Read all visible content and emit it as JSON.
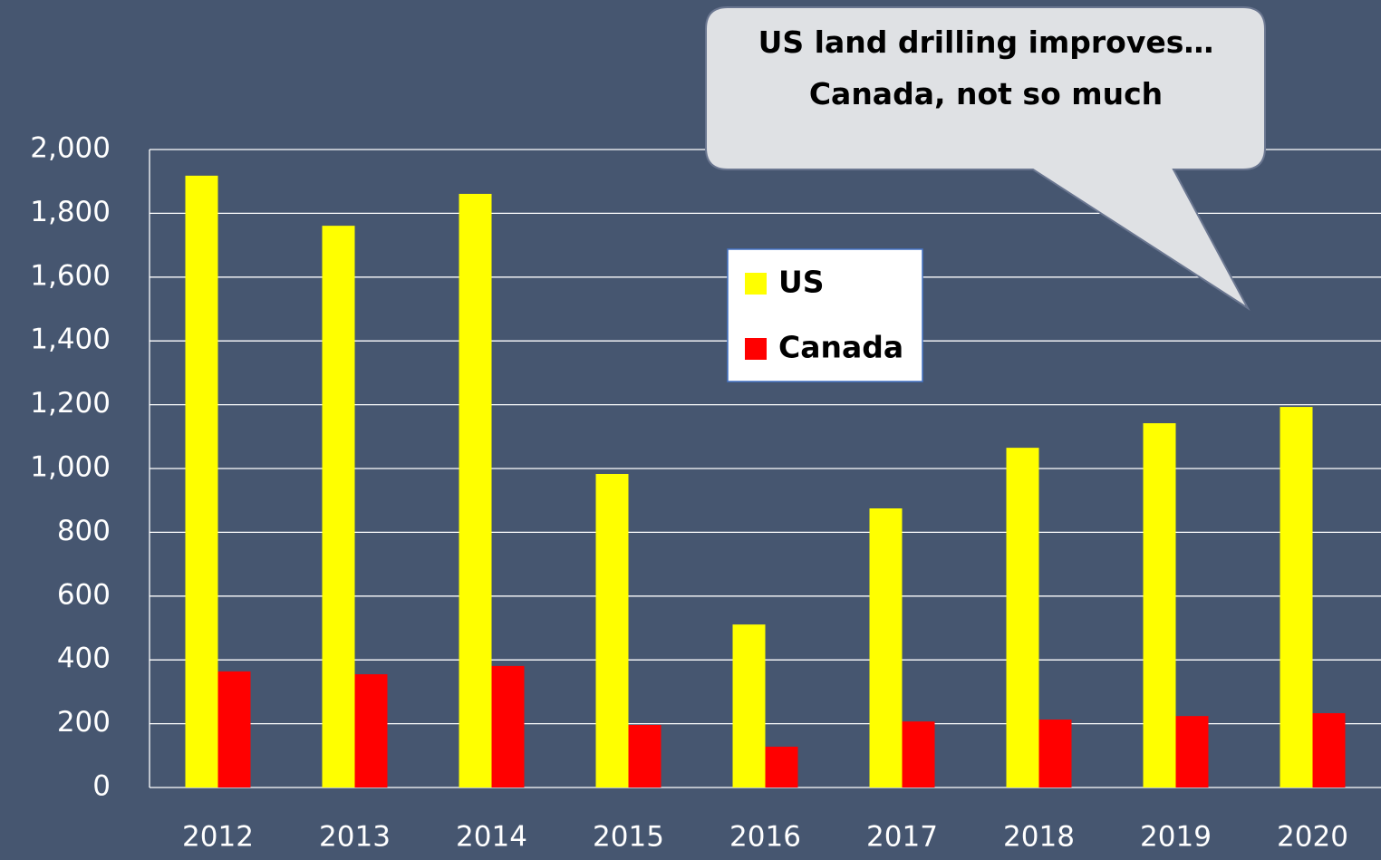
{
  "chart_data": {
    "type": "bar",
    "annotation": "US land drilling improves…Canada, not so much",
    "categories": [
      "2012",
      "2013",
      "2014",
      "2015",
      "2016",
      "2017",
      "2018",
      "2019",
      "2020"
    ],
    "series": [
      {
        "name": "US",
        "color": "#ffff00",
        "values": [
          1918,
          1761,
          1861,
          983,
          511,
          875,
          1065,
          1142,
          1193
        ]
      },
      {
        "name": "Canada",
        "color": "#ff0000",
        "values": [
          364,
          355,
          381,
          196,
          128,
          207,
          213,
          224,
          233
        ]
      }
    ],
    "ylim": [
      0,
      2000
    ],
    "yticks": [
      0,
      200,
      400,
      600,
      800,
      {
        "value": 1000,
        "label": "1,000"
      },
      {
        "value": 1200,
        "label": "1,200"
      },
      {
        "value": 1400,
        "label": "1,400"
      },
      {
        "value": 1600,
        "label": "1,600"
      },
      {
        "value": 1800,
        "label": "1,800"
      },
      {
        "value": 2000,
        "label": "2,000"
      }
    ],
    "grid": true,
    "legend": "center"
  }
}
